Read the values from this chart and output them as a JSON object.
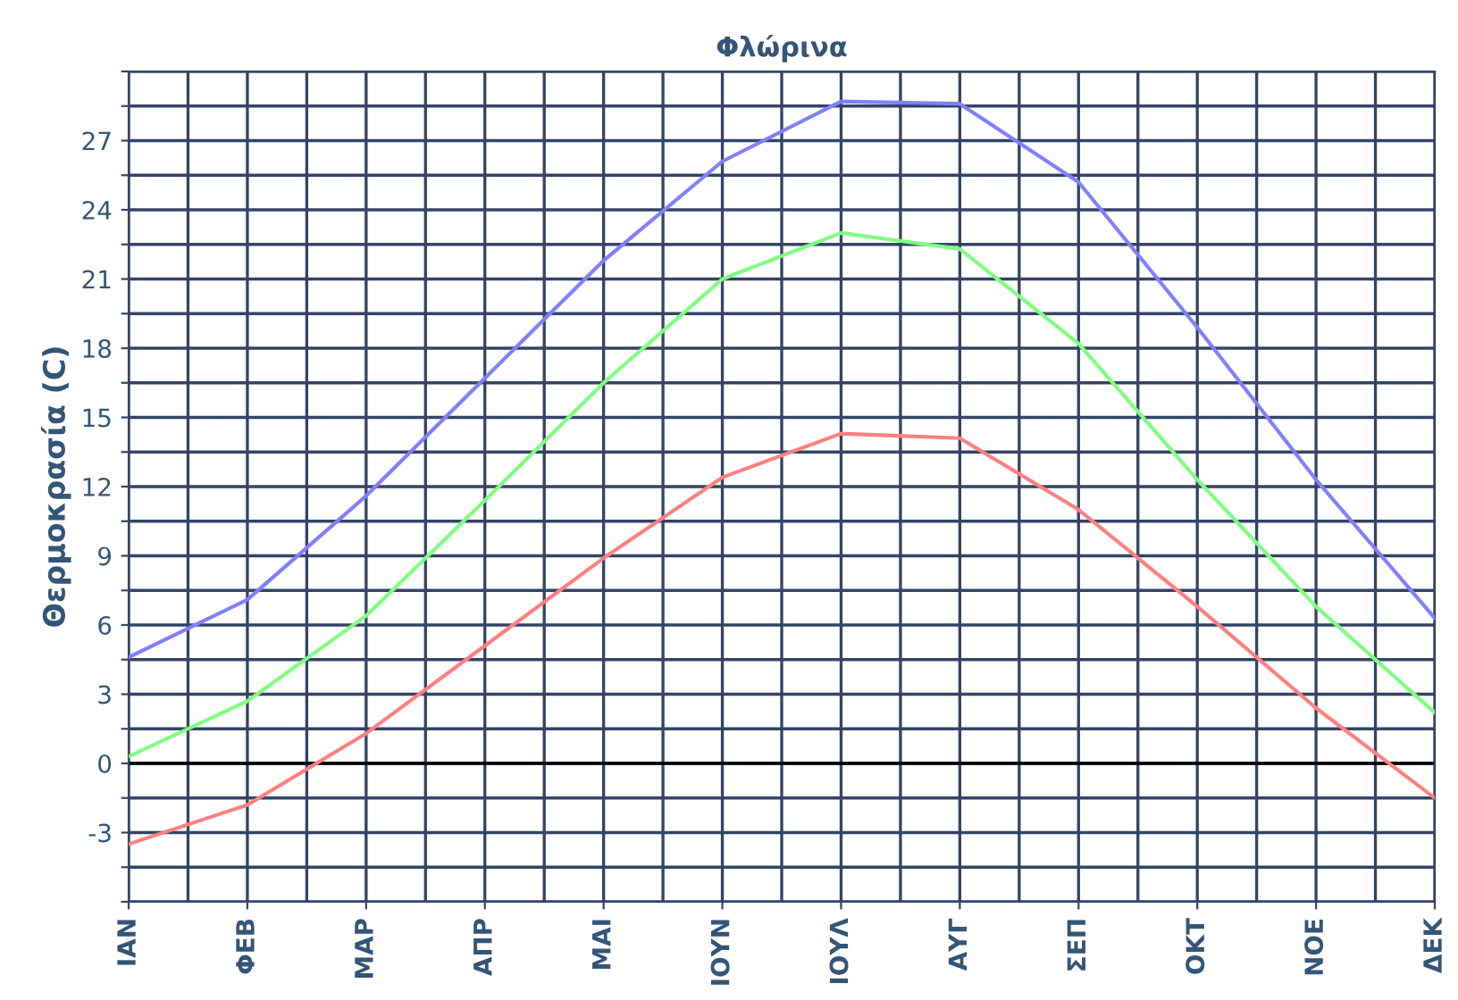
{
  "chart_data": {
    "type": "line",
    "title": "Φλώρινα",
    "ylabel": "Θερμοκρασία (C)",
    "categories": [
      "ΙΑΝ",
      "ΦΕΒ",
      "ΜΑΡ",
      "ΑΠΡ",
      "ΜΑΙ",
      "ΙΟΥΝ",
      "ΙΟΥΛ",
      "ΑΥΓ",
      "ΣΕΠ",
      "ΟΚΤ",
      "ΝΟΕ",
      "ΔΕΚ"
    ],
    "series": [
      {
        "color": "#8080ff",
        "values": [
          4.6,
          7.1,
          11.6,
          16.7,
          21.8,
          26.1,
          28.7,
          28.6,
          25.2,
          18.9,
          12.3,
          6.3
        ]
      },
      {
        "color": "#80ff80",
        "values": [
          0.3,
          2.7,
          6.4,
          11.4,
          16.5,
          21.0,
          23.0,
          22.3,
          18.2,
          12.3,
          6.8,
          2.2
        ]
      },
      {
        "color": "#ff8080",
        "values": [
          -3.5,
          -1.8,
          1.3,
          5.1,
          8.9,
          12.4,
          14.3,
          14.1,
          11.0,
          6.8,
          2.4,
          -1.5
        ]
      }
    ],
    "ylim": [
      -6,
      30
    ],
    "yticks": [
      {
        "value": -6,
        "label": null
      },
      {
        "value": -4.5,
        "label": null
      },
      -3,
      {
        "value": -1.5,
        "label": null
      },
      0,
      {
        "value": 1.5,
        "label": null
      },
      3,
      {
        "value": 4.5,
        "label": null
      },
      6,
      {
        "value": 7.5,
        "label": null
      },
      9,
      {
        "value": 10.5,
        "label": null
      },
      12,
      {
        "value": 13.5,
        "label": null
      },
      15,
      {
        "value": 16.5,
        "label": null
      },
      18,
      {
        "value": 19.5,
        "label": null
      },
      21,
      {
        "value": 22.5,
        "label": null
      },
      24,
      {
        "value": 25.5,
        "label": null
      },
      27,
      {
        "value": 28.5,
        "label": null
      },
      {
        "value": 30,
        "label": null
      }
    ],
    "ref_lines": [
      {
        "axis": "y",
        "value": 0,
        "color": "#000000"
      }
    ],
    "grid": true,
    "legend": false,
    "marker": "none",
    "line_style": "solid"
  }
}
